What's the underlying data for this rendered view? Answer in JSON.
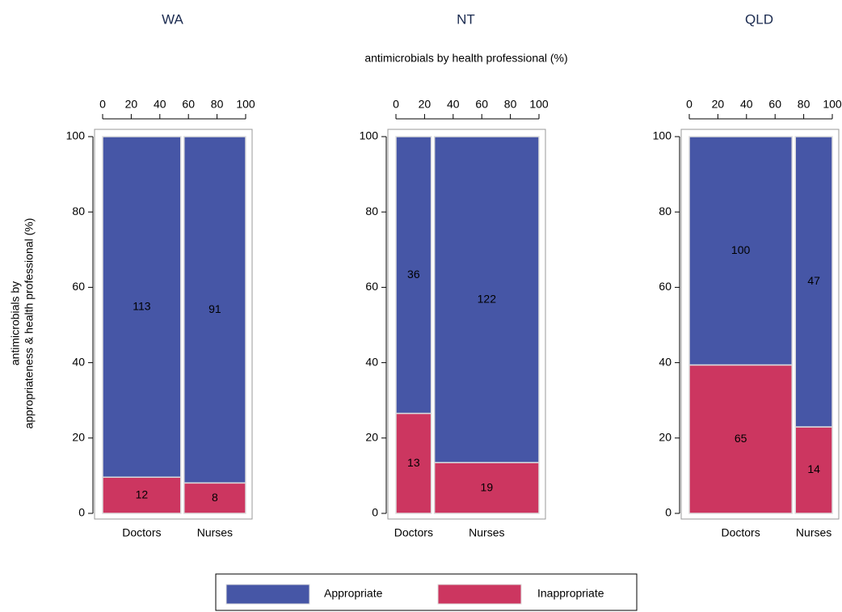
{
  "figure": {
    "x_label": "antimicrobials by health professional (%)",
    "y_label": [
      "antimicrobials by",
      "appropriateness & health professional (%)"
    ]
  },
  "chart_data": [
    {
      "type": "mosaic",
      "title": "WA",
      "categories": [
        "Doctors",
        "Nurses"
      ],
      "series": [
        {
          "name": "Inappropriate",
          "color": "#cc3660",
          "values": [
            12,
            8
          ]
        },
        {
          "name": "Appropriate",
          "color": "#4656a6",
          "values": [
            113,
            91
          ]
        }
      ],
      "xlim": [
        0,
        100
      ],
      "xticks": [
        0,
        20,
        40,
        60,
        80,
        100
      ],
      "ylim": [
        0,
        100
      ],
      "yticks": [
        0,
        20,
        40,
        60,
        80,
        100
      ]
    },
    {
      "type": "mosaic",
      "title": "NT",
      "categories": [
        "Doctors",
        "Nurses"
      ],
      "series": [
        {
          "name": "Inappropriate",
          "color": "#cc3660",
          "values": [
            13,
            19
          ]
        },
        {
          "name": "Appropriate",
          "color": "#4656a6",
          "values": [
            36,
            122
          ]
        }
      ],
      "xlim": [
        0,
        100
      ],
      "xticks": [
        0,
        20,
        40,
        60,
        80,
        100
      ],
      "ylim": [
        0,
        100
      ],
      "yticks": [
        0,
        20,
        40,
        60,
        80,
        100
      ]
    },
    {
      "type": "mosaic",
      "title": "QLD",
      "categories": [
        "Doctors",
        "Nurses"
      ],
      "series": [
        {
          "name": "Inappropriate",
          "color": "#cc3660",
          "values": [
            65,
            14
          ]
        },
        {
          "name": "Appropriate",
          "color": "#4656a6",
          "values": [
            100,
            47
          ]
        }
      ],
      "xlim": [
        0,
        100
      ],
      "xticks": [
        0,
        20,
        40,
        60,
        80,
        100
      ],
      "ylim": [
        0,
        100
      ],
      "yticks": [
        0,
        20,
        40,
        60,
        80,
        100
      ]
    }
  ]
}
